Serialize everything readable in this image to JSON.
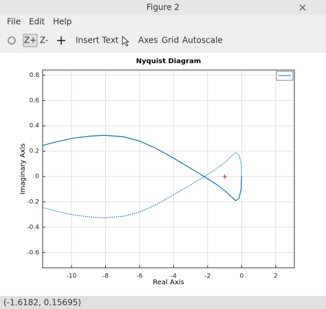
{
  "window": {
    "title": "Figure 2",
    "menu": [
      "File",
      "Edit",
      "Help"
    ],
    "toolbar": [
      "Z+",
      "Z-",
      "Insert Text",
      "Axes",
      "Grid",
      "Autoscale"
    ],
    "status": "(-1.6182, 0.15695)"
  },
  "chart_data": {
    "type": "line",
    "title": "Nyquist Diagram",
    "x_label": "Real Axis",
    "y_label": "Imaginary Axis",
    "x": [
      -11.7,
      -11,
      -10,
      -9,
      -8.1,
      -7,
      -6,
      -5,
      -4,
      -3,
      -2.2,
      -1.5,
      -1,
      -0.6,
      -0.35,
      -0.15,
      -0.03,
      0
    ],
    "series": [
      {
        "color": "#0072bd",
        "style": "solid",
        "values": [
          0.245,
          0.27,
          0.3,
          0.318,
          0.325,
          0.315,
          0.28,
          0.22,
          0.145,
          0.065,
          0,
          -0.06,
          -0.11,
          -0.16,
          -0.19,
          -0.17,
          -0.1,
          0
        ]
      },
      {
        "color": "#0072bd",
        "style": "dotted",
        "values": [
          -0.245,
          -0.27,
          -0.3,
          -0.318,
          -0.325,
          -0.315,
          -0.28,
          -0.22,
          -0.145,
          -0.065,
          0,
          0.06,
          0.11,
          0.16,
          0.19,
          0.17,
          0.1,
          0
        ]
      }
    ],
    "marker": {
      "x": -1,
      "y": 0,
      "color": "#ff0000"
    },
    "xlim": [
      -11.7,
      3.1
    ],
    "ylim": [
      -0.72,
      0.84
    ],
    "xticks": [
      -10,
      -8,
      -6,
      -4,
      -2,
      0,
      2
    ],
    "yticks": [
      -0.6,
      -0.4,
      -0.2,
      0,
      0.2,
      0.4,
      0.6,
      0.8
    ],
    "grid": true,
    "legend": "top-right"
  }
}
